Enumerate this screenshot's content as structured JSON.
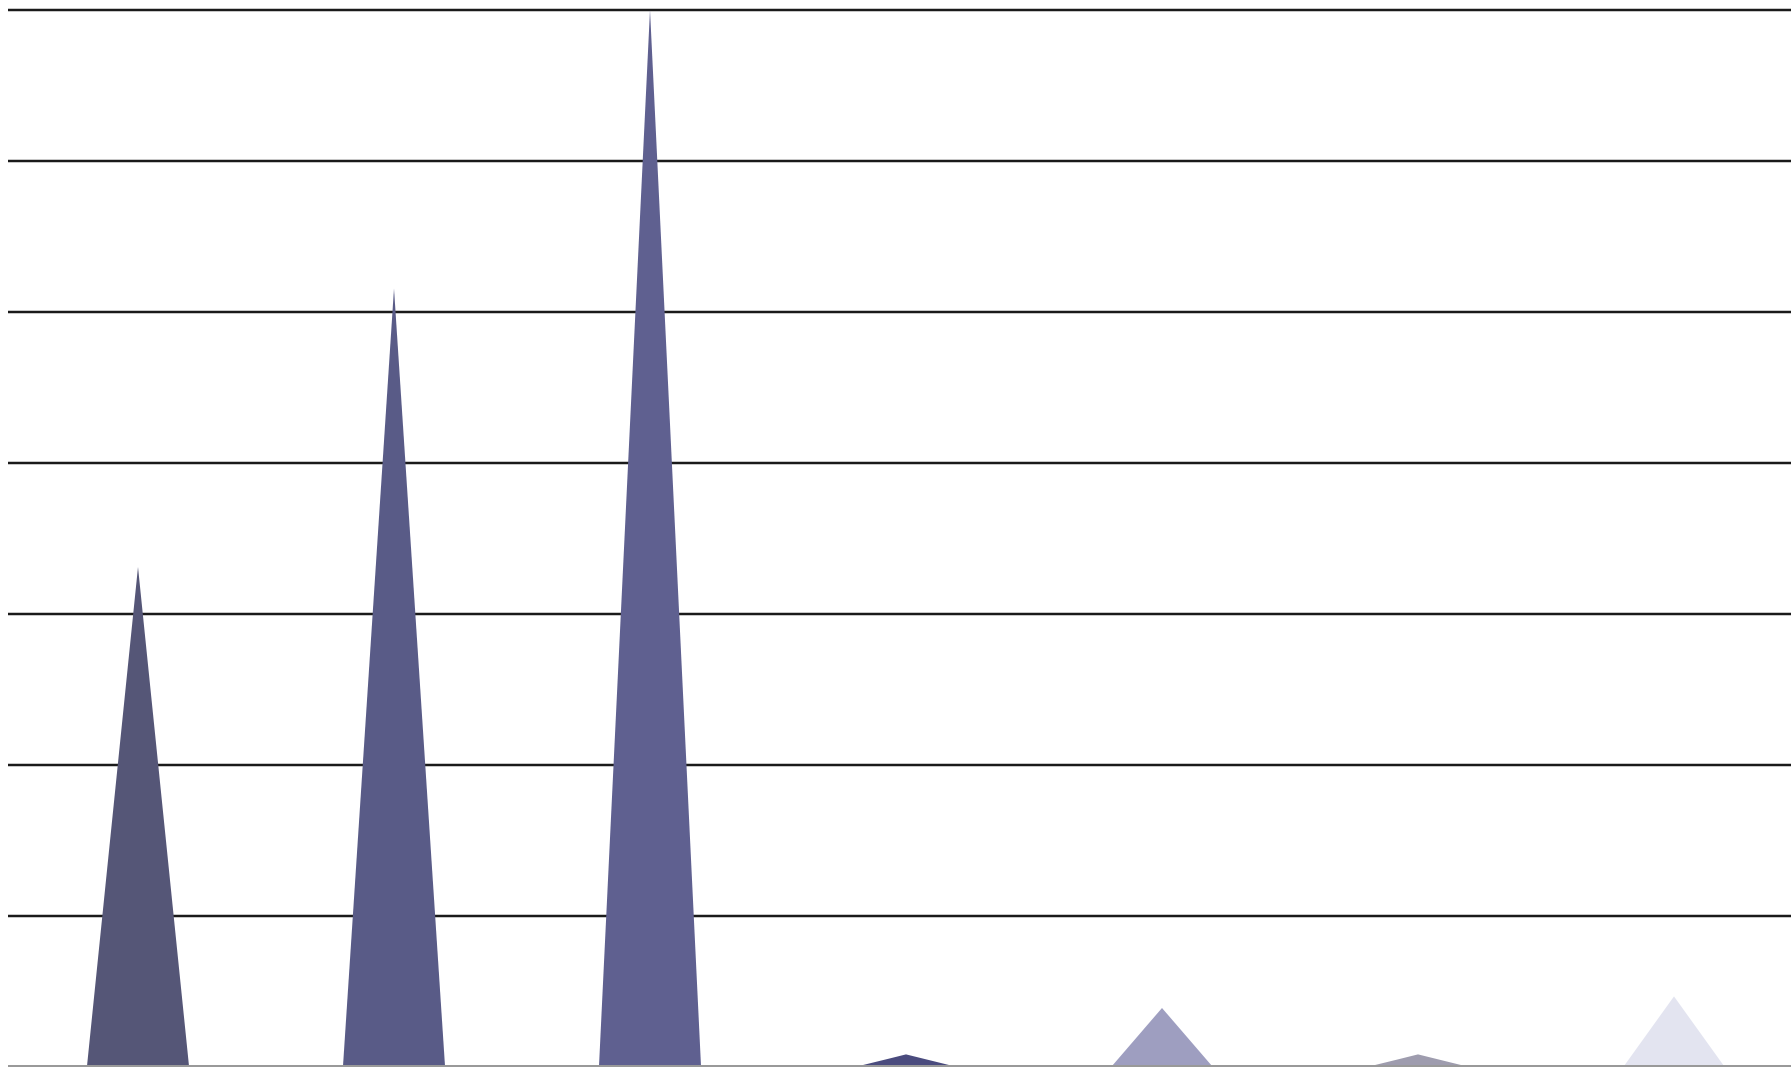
{
  "chart_data": {
    "type": "bar",
    "mark_shape": "spike",
    "categories": [
      "",
      "",
      "",
      "",
      "",
      "",
      ""
    ],
    "values": [
      43,
      67,
      91,
      1,
      5,
      1,
      6
    ],
    "ylim": [
      0,
      91
    ],
    "grid": true,
    "gridline_count": 7,
    "legend": "none",
    "colors": [
      "#555677",
      "#595b87",
      "#5f6090",
      "#4a4b7e",
      "#9e9ec0",
      "#9e9cae",
      "#e3e4f0"
    ],
    "gridline_color": "#1a1a1a",
    "baseline_color": "#999999"
  }
}
